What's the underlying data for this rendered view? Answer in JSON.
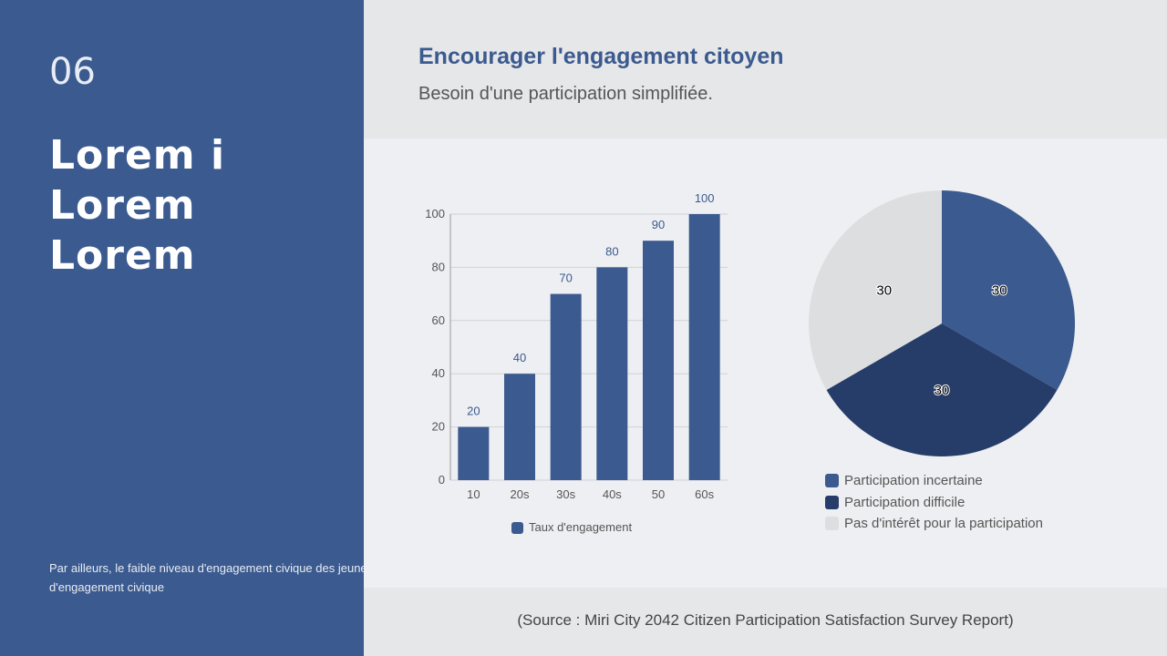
{
  "sidebar": {
    "number": "06",
    "heading": [
      "Lorem i",
      "Lorem",
      "Lorem"
    ],
    "paragraph_line1": "Par ailleurs, le faible niveau d'engagement civique des jeunes",
    "paragraph_line2": "d'engagement civique"
  },
  "header": {
    "title": "Encourager l'engagement citoyen",
    "subtitle": "Besoin d'une participation simplifiée."
  },
  "footer": {
    "source": "(Source : Miri City 2042 Citizen Participation Satisfaction Survey Report)"
  },
  "chart_data": [
    {
      "type": "bar",
      "categories": [
        "10",
        "20s",
        "30s",
        "40s",
        "50",
        "60s"
      ],
      "series": [
        {
          "name": "Taux d'engagement",
          "values": [
            20,
            40,
            70,
            80,
            90,
            100
          ],
          "color": "#3b5a8f"
        }
      ],
      "ylim": [
        0,
        100
      ],
      "yticks": [
        0,
        20,
        40,
        60,
        80,
        100
      ],
      "grid": true,
      "legend": "bottom"
    },
    {
      "type": "pie",
      "labels": [
        "Participation incertaine",
        "Participation difficile",
        "Pas d'intérêt pour la participation"
      ],
      "values": [
        30,
        30,
        30
      ],
      "colors": [
        "#3b5a8f",
        "#263d69",
        "#dddee0"
      ],
      "legend": "bottom"
    }
  ]
}
